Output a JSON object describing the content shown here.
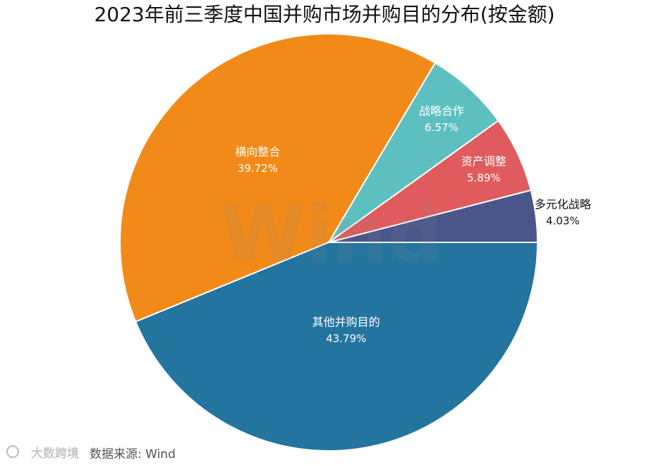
{
  "chart_data": {
    "type": "pie",
    "title": "2023年前三季度中国并购市场并购目的分布(按金额)",
    "categories": [
      "多元化战略",
      "资产调整",
      "战略合作",
      "横向整合",
      "其他并购目的"
    ],
    "values": [
      4.03,
      5.89,
      6.57,
      39.72,
      43.79
    ],
    "value_labels": [
      "4.03%",
      "5.89%",
      "6.57%",
      "39.72%",
      "43.79%"
    ],
    "colors": [
      "#4a568a",
      "#e05b5d",
      "#5ebfc1",
      "#f28a1a",
      "#2474a0"
    ],
    "watermark": "Wind",
    "logo": "大数跨境",
    "source": "数据来源: Wind"
  }
}
